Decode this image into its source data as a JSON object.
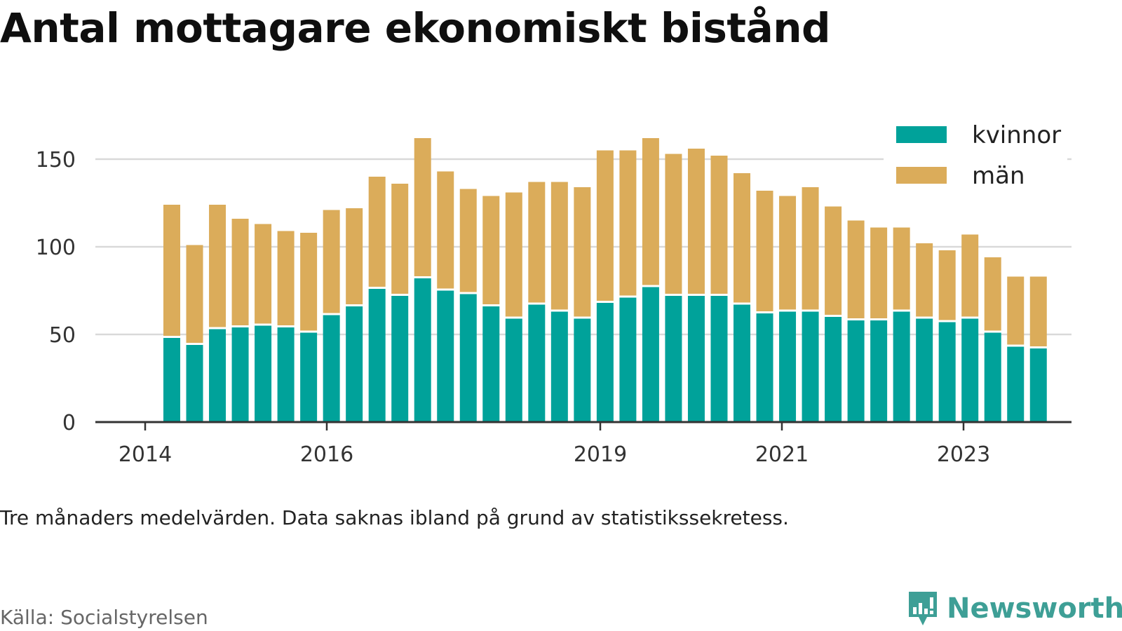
{
  "title": "Antal mottagare ekonomiskt bistånd",
  "note": "Tre månaders medelvärden. Data saknas ibland på grund av statistikssekretess.",
  "source": "Källa: Socialstyrelsen",
  "brand": {
    "name": "Newsworthy",
    "color": "#3e9f96",
    "icon": "chart-speech-bubble-icon"
  },
  "colors": {
    "kvinnor": "#00a29a",
    "man": "#dbac5a",
    "grid": "#d9d9d9",
    "axis": "#333333"
  },
  "chart_data": {
    "type": "bar",
    "stacked": true,
    "legend_position": "top-right",
    "grid": true,
    "ylim": [
      0,
      170
    ],
    "y_ticks": [
      0,
      50,
      100,
      150
    ],
    "x_ticks": [
      "2014",
      "2016",
      "2019",
      "2021",
      "2023"
    ],
    "series": [
      {
        "name": "kvinnor",
        "color": "#00a29a",
        "values": [
          48,
          44,
          53,
          54,
          55,
          54,
          51,
          61,
          66,
          76,
          72,
          82,
          75,
          73,
          66,
          59,
          67,
          63,
          59,
          68,
          71,
          77,
          72,
          72,
          72,
          67,
          62,
          63,
          63,
          60,
          58,
          58,
          63,
          59,
          57,
          59,
          51,
          43,
          42
        ]
      },
      {
        "name": "män",
        "color": "#dbac5a",
        "values": [
          76,
          57,
          71,
          62,
          58,
          55,
          57,
          60,
          56,
          64,
          64,
          80,
          68,
          60,
          63,
          72,
          70,
          74,
          75,
          87,
          84,
          85,
          81,
          84,
          80,
          75,
          70,
          66,
          71,
          63,
          57,
          53,
          48,
          43,
          41,
          48,
          43,
          40,
          41
        ]
      }
    ]
  }
}
